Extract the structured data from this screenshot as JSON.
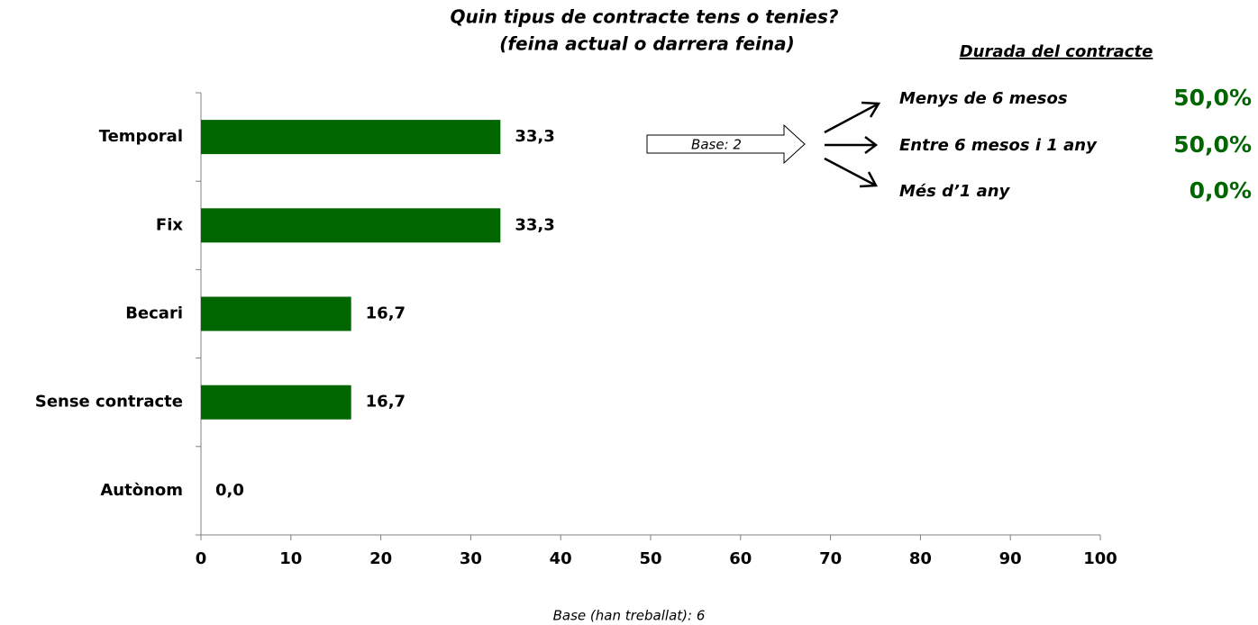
{
  "chart_data": {
    "type": "hbar",
    "title": [
      "Quin tipus de contracte tens o tenies?",
      "(feina actual o darrera feina)"
    ],
    "categories": [
      "Temporal",
      "Fix",
      "Becari",
      "Sense contracte",
      "Autònom"
    ],
    "values": [
      33.3,
      33.3,
      16.7,
      16.7,
      0.0
    ],
    "value_labels": [
      "33,3",
      "33,3",
      "16,7",
      "16,7",
      "0,0"
    ],
    "color": "#006600",
    "xlim": [
      0,
      100
    ],
    "xticks": [
      0,
      10,
      20,
      30,
      40,
      50,
      60,
      70,
      80,
      90,
      100
    ],
    "footnote": "Base (han treballat): 6"
  },
  "duration": {
    "title": "Durada del contracte",
    "base": "Base: 2",
    "items": [
      {
        "name": "Menys de 6 mesos",
        "value": 50,
        "label": "50,0%"
      },
      {
        "name": "Entre 6 mesos i 1 any",
        "value": 50,
        "label": "50,0%"
      },
      {
        "name": "Més d’1 any",
        "value": 0,
        "label": "0,0%"
      }
    ]
  }
}
